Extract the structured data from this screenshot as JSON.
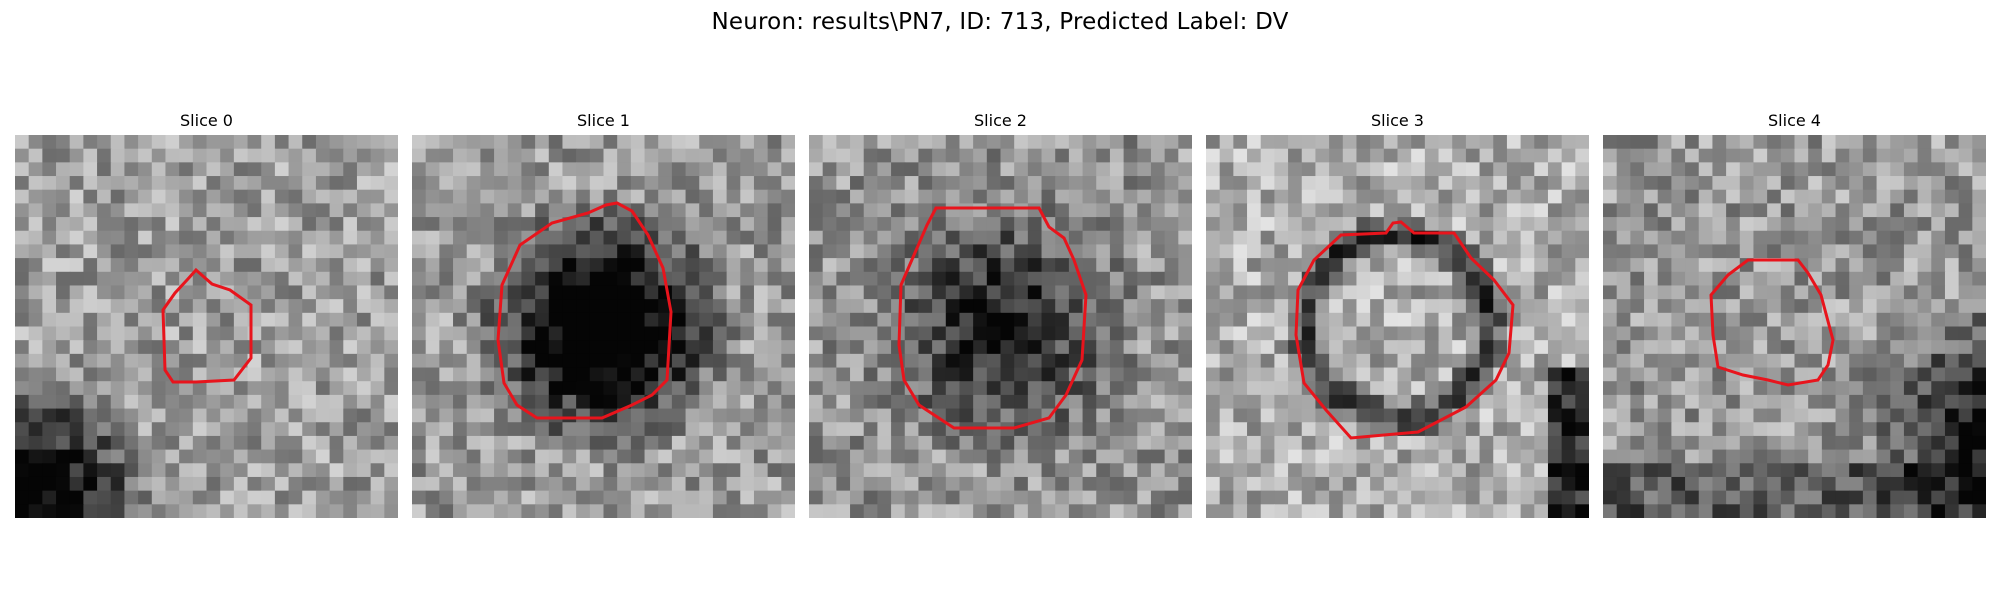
{
  "figure": {
    "title": "Neuron: results\\PN7, ID: 713, Predicted Label: DV"
  },
  "panels": [
    {
      "title": "Slice 0"
    },
    {
      "title": "Slice 1"
    },
    {
      "title": "Slice 2"
    },
    {
      "title": "Slice 3"
    },
    {
      "title": "Slice 4"
    }
  ],
  "colors": {
    "contour": "#e8141c",
    "background": "#ffffff"
  }
}
